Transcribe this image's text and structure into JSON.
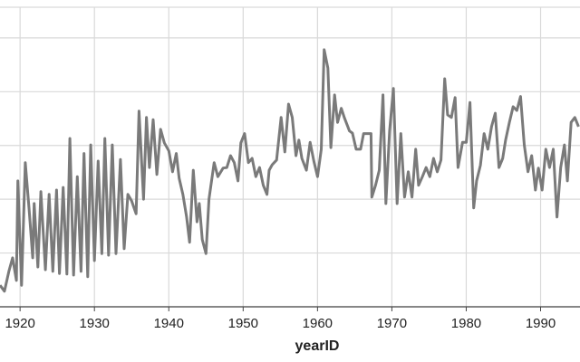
{
  "chart_data": {
    "type": "line",
    "x_label": "yearID",
    "color": "#7a7a7a",
    "grid": true,
    "xlim": [
      1917.3,
      1995.3
    ],
    "xticks": [
      1920,
      1930,
      1940,
      1950,
      1960,
      1970,
      1980,
      1990
    ],
    "ylim": [
      0,
      5.57
    ],
    "ygrid": [
      0,
      1,
      2,
      3,
      4,
      5
    ],
    "x": [
      1917.3,
      1917.9,
      1918.5,
      1919.0,
      1919.5,
      1919.7,
      1920.2,
      1920.7,
      1921.2,
      1921.7,
      1921.9,
      1922.4,
      1922.8,
      1923.4,
      1923.9,
      1924.4,
      1924.9,
      1925.3,
      1925.8,
      1926.3,
      1926.7,
      1927.2,
      1927.7,
      1928.2,
      1928.6,
      1929.1,
      1929.5,
      1930.0,
      1930.5,
      1931.0,
      1931.4,
      1931.9,
      1932.4,
      1932.9,
      1933.5,
      1934.0,
      1934.5,
      1935.0,
      1935.6,
      1936.0,
      1936.6,
      1937.0,
      1937.4,
      1937.9,
      1938.4,
      1938.9,
      1939.4,
      1940.0,
      1940.5,
      1941.0,
      1941.4,
      1941.9,
      1942.4,
      1942.8,
      1943.3,
      1943.8,
      1944.1,
      1944.5,
      1945.0,
      1945.4,
      1946.1,
      1946.6,
      1947.3,
      1947.8,
      1948.3,
      1948.8,
      1949.3,
      1949.7,
      1950.2,
      1950.7,
      1951.2,
      1951.7,
      1952.2,
      1952.7,
      1953.2,
      1953.5,
      1953.9,
      1954.5,
      1955.1,
      1955.6,
      1956.1,
      1956.6,
      1957.1,
      1957.5,
      1957.9,
      1958.5,
      1959.0,
      1959.5,
      1960.0,
      1960.5,
      1960.9,
      1961.4,
      1961.8,
      1962.3,
      1962.7,
      1963.2,
      1963.6,
      1964.3,
      1964.7,
      1965.2,
      1965.8,
      1966.2,
      1967.2,
      1967.3,
      1967.8,
      1968.3,
      1968.8,
      1969.2,
      1969.7,
      1970.2,
      1970.7,
      1971.2,
      1971.7,
      1972.2,
      1972.7,
      1973.2,
      1973.6,
      1974.1,
      1974.6,
      1975.1,
      1975.6,
      1976.1,
      1976.6,
      1977.1,
      1977.5,
      1978.0,
      1978.5,
      1978.9,
      1979.5,
      1980.0,
      1980.5,
      1981.0,
      1981.4,
      1981.9,
      1982.4,
      1982.9,
      1983.4,
      1983.9,
      1984.4,
      1984.9,
      1985.3,
      1985.8,
      1986.3,
      1986.8,
      1987.3,
      1987.8,
      1988.3,
      1988.8,
      1989.3,
      1989.7,
      1990.2,
      1990.7,
      1991.2,
      1991.7,
      1992.2,
      1992.7,
      1993.2,
      1993.6,
      1994.1,
      1994.6,
      1995.1
    ],
    "values": [
      0.4,
      0.29,
      0.66,
      0.91,
      0.49,
      2.34,
      0.4,
      2.68,
      1.84,
      0.91,
      1.92,
      0.74,
      2.14,
      0.69,
      2.09,
      0.66,
      2.17,
      0.62,
      2.22,
      0.61,
      3.13,
      0.59,
      2.42,
      0.66,
      2.85,
      0.56,
      3.01,
      0.86,
      2.71,
      0.99,
      3.13,
      0.96,
      3.01,
      0.99,
      2.74,
      1.08,
      2.09,
      1.97,
      1.73,
      3.64,
      2.0,
      3.52,
      2.59,
      3.48,
      2.46,
      3.3,
      3.05,
      2.9,
      2.51,
      2.85,
      2.39,
      2.09,
      1.67,
      1.2,
      2.54,
      1.58,
      1.92,
      1.25,
      0.99,
      2.0,
      2.68,
      2.42,
      2.58,
      2.59,
      2.81,
      2.68,
      2.34,
      3.05,
      3.22,
      2.68,
      2.76,
      2.42,
      2.59,
      2.26,
      2.09,
      2.54,
      2.64,
      2.73,
      3.52,
      2.88,
      3.77,
      3.52,
      2.81,
      3.1,
      2.76,
      2.54,
      3.06,
      2.71,
      2.42,
      2.93,
      4.78,
      4.44,
      2.96,
      3.94,
      3.43,
      3.69,
      3.52,
      3.27,
      3.23,
      2.93,
      2.93,
      3.22,
      3.22,
      2.04,
      2.26,
      2.54,
      3.94,
      1.92,
      3.27,
      4.06,
      1.92,
      3.22,
      2.04,
      2.51,
      2.04,
      2.93,
      2.26,
      2.42,
      2.59,
      2.42,
      2.76,
      2.51,
      2.73,
      4.24,
      3.57,
      3.52,
      3.89,
      2.59,
      3.06,
      3.06,
      3.8,
      1.84,
      2.34,
      2.63,
      3.22,
      2.93,
      3.35,
      3.6,
      2.59,
      2.76,
      3.1,
      3.43,
      3.72,
      3.65,
      3.91,
      3.01,
      2.51,
      2.81,
      2.17,
      2.58,
      2.17,
      2.93,
      2.59,
      2.93,
      1.67,
      2.59,
      3.01,
      2.34,
      3.43,
      3.52,
      3.35
    ]
  }
}
